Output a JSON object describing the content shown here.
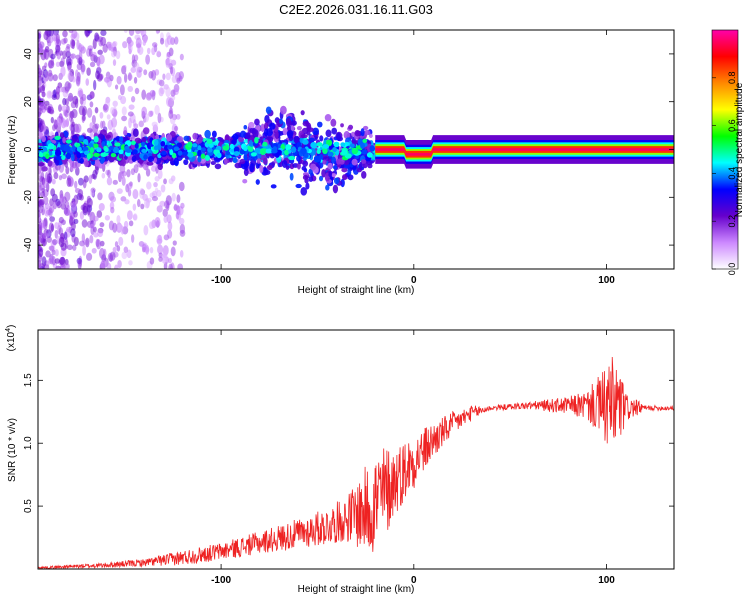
{
  "figure_title": "C2E2.2026.031.16.11.G03",
  "chart_data": [
    {
      "type": "heatmap",
      "xlabel": "Height of straight line (km)",
      "ylabel": "Frequency (Hz)",
      "xlim": [
        -195,
        135
      ],
      "ylim": [
        -50,
        50
      ],
      "x_ticks": [
        -100,
        0,
        100
      ],
      "y_ticks": [
        -40,
        -20,
        0,
        20,
        40
      ],
      "colorbar": {
        "label": "Normalized spectral amplitude",
        "range": [
          0.0,
          1.0
        ],
        "ticks": [
          0.0,
          0.2,
          0.4,
          0.6,
          0.8
        ],
        "tick_labels": [
          "0.0",
          "0.2",
          "0.4",
          "0.6",
          "0.8"
        ],
        "colors": [
          "#ffffff",
          "#cc88ff",
          "#6600cc",
          "#0000ff",
          "#00ffff",
          "#00ff00",
          "#ffff00",
          "#ff8800",
          "#ff0000",
          "#ff00aa"
        ]
      },
      "features": {
        "central_band_freq_hz": 0,
        "scatter_region_km": [
          -195,
          -20
        ],
        "clean_tone_region_km": [
          -20,
          135
        ],
        "dip_region_km": [
          -5,
          10
        ],
        "dip_freq_hz": -2
      }
    },
    {
      "type": "line",
      "title": "",
      "xlabel": "Height of straight line (km)",
      "ylabel": "SNR (10 * v/v)",
      "y_exponent_label": "(x10",
      "y_exponent": "4",
      "y_exponent_close": ")",
      "xlim": [
        -195,
        135
      ],
      "ylim": [
        0,
        1.9
      ],
      "x_ticks": [
        -100,
        0,
        100
      ],
      "y_ticks": [
        0.5,
        1.0,
        1.5
      ],
      "y_tick_labels": [
        "0.5",
        "1.0",
        "1.5"
      ],
      "color": "#ee2222",
      "envelope": {
        "x": [
          -195,
          -160,
          -140,
          -120,
          -100,
          -80,
          -60,
          -45,
          -35,
          -25,
          -18,
          -10,
          0,
          10,
          20,
          30,
          40,
          60,
          80,
          90,
          95,
          100,
          105,
          110,
          120,
          135
        ],
        "mean": [
          0.01,
          0.03,
          0.05,
          0.09,
          0.14,
          0.21,
          0.28,
          0.34,
          0.4,
          0.47,
          0.55,
          0.7,
          0.86,
          1.02,
          1.15,
          1.24,
          1.28,
          1.3,
          1.3,
          1.3,
          1.3,
          1.29,
          1.29,
          1.28,
          1.28,
          1.28
        ],
        "amplitude": [
          0.008,
          0.02,
          0.03,
          0.06,
          0.07,
          0.09,
          0.12,
          0.15,
          0.18,
          0.35,
          0.45,
          0.28,
          0.22,
          0.15,
          0.1,
          0.06,
          0.02,
          0.03,
          0.07,
          0.12,
          0.22,
          0.33,
          0.45,
          0.12,
          0.02,
          0.02
        ]
      }
    }
  ]
}
